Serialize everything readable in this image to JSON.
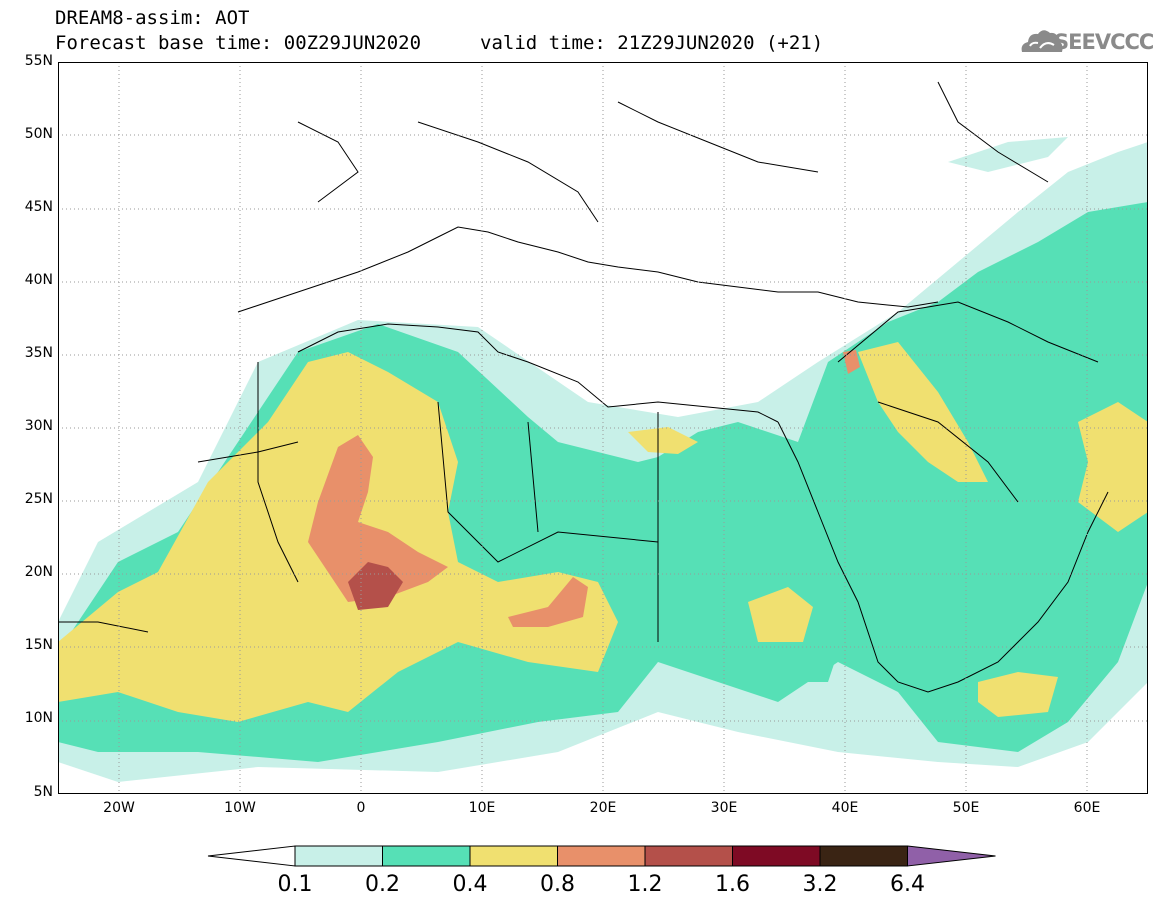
{
  "header": {
    "title_line1": "DREAM8-assim: AOT",
    "title_line2": "Forecast base time: 00Z29JUN2020",
    "valid_time": "valid time: 21Z29JUN2020 (+21)"
  },
  "logo": {
    "text": "SEEVCCC",
    "icon": "cloud-icon"
  },
  "map": {
    "lat_labels": [
      "55N",
      "50N",
      "45N",
      "40N",
      "35N",
      "30N",
      "25N",
      "20N",
      "15N",
      "10N",
      "5N"
    ],
    "lon_labels": [
      "20W",
      "10W",
      "0",
      "10E",
      "20E",
      "30E",
      "40E",
      "50E",
      "60E"
    ],
    "lat_range": [
      5,
      55
    ],
    "lon_range": [
      -25,
      65
    ],
    "grid": "dotted"
  },
  "colorbar": {
    "labels": [
      "0.1",
      "0.2",
      "0.4",
      "0.8",
      "1.2",
      "1.6",
      "3.2",
      "6.4"
    ],
    "colors": [
      "#ffffff",
      "#c8f0e8",
      "#56e0b6",
      "#f0e070",
      "#e8906a",
      "#b4504a",
      "#7e0a24",
      "#3a2414",
      "#9060a8"
    ]
  }
}
